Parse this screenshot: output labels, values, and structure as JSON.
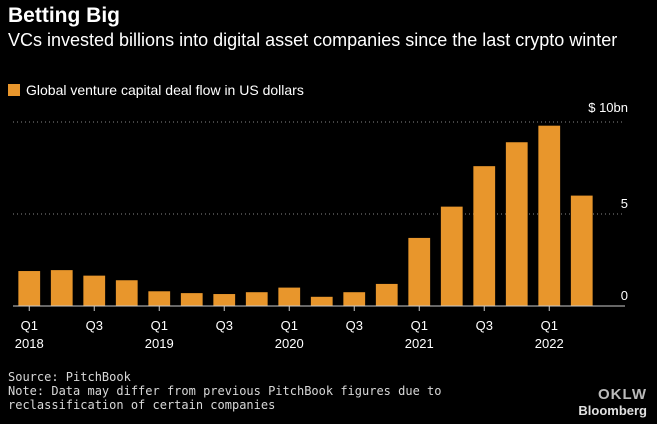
{
  "header": {
    "title": "Betting Big",
    "subtitle": "VCs invested billions into digital asset companies since the last crypto winter",
    "legend_label": "Global venture capital deal flow in US dollars"
  },
  "footer": {
    "source": "Source: PitchBook",
    "note": "Note: Data may differ from previous PitchBook figures due to reclassification of certain companies",
    "brand": "Bloomberg",
    "watermark": "OKLW"
  },
  "colors": {
    "bar": "#E8962C",
    "grid": "#888888",
    "text": "#ffffff",
    "axis": "#cccccc"
  },
  "chart_data": {
    "type": "bar",
    "title": "Betting Big",
    "ylabel": "",
    "ylim": [
      0,
      10
    ],
    "y_ticks": [
      {
        "value": 0,
        "label": "0"
      },
      {
        "value": 5,
        "label": "5"
      },
      {
        "value": 10,
        "label": "$ 10bn"
      }
    ],
    "categories": [
      "Q1 2018",
      "Q2 2018",
      "Q3 2018",
      "Q4 2018",
      "Q1 2019",
      "Q2 2019",
      "Q3 2019",
      "Q4 2019",
      "Q1 2020",
      "Q2 2020",
      "Q3 2020",
      "Q4 2020",
      "Q1 2021",
      "Q2 2021",
      "Q3 2021",
      "Q4 2021",
      "Q1 2022",
      "Q2 2022"
    ],
    "values": [
      1.9,
      1.95,
      1.65,
      1.4,
      0.8,
      0.7,
      0.65,
      0.75,
      1.0,
      0.5,
      0.75,
      1.2,
      3.7,
      5.4,
      7.6,
      8.9,
      9.8,
      6.0
    ],
    "x_tick_labels": [
      {
        "index": 0,
        "quarter": "Q1",
        "year": "2018"
      },
      {
        "index": 2,
        "quarter": "Q3",
        "year": ""
      },
      {
        "index": 4,
        "quarter": "Q1",
        "year": "2019"
      },
      {
        "index": 6,
        "quarter": "Q3",
        "year": ""
      },
      {
        "index": 8,
        "quarter": "Q1",
        "year": "2020"
      },
      {
        "index": 10,
        "quarter": "Q3",
        "year": ""
      },
      {
        "index": 12,
        "quarter": "Q1",
        "year": "2021"
      },
      {
        "index": 14,
        "quarter": "Q3",
        "year": ""
      },
      {
        "index": 16,
        "quarter": "Q1",
        "year": "2022"
      }
    ]
  }
}
